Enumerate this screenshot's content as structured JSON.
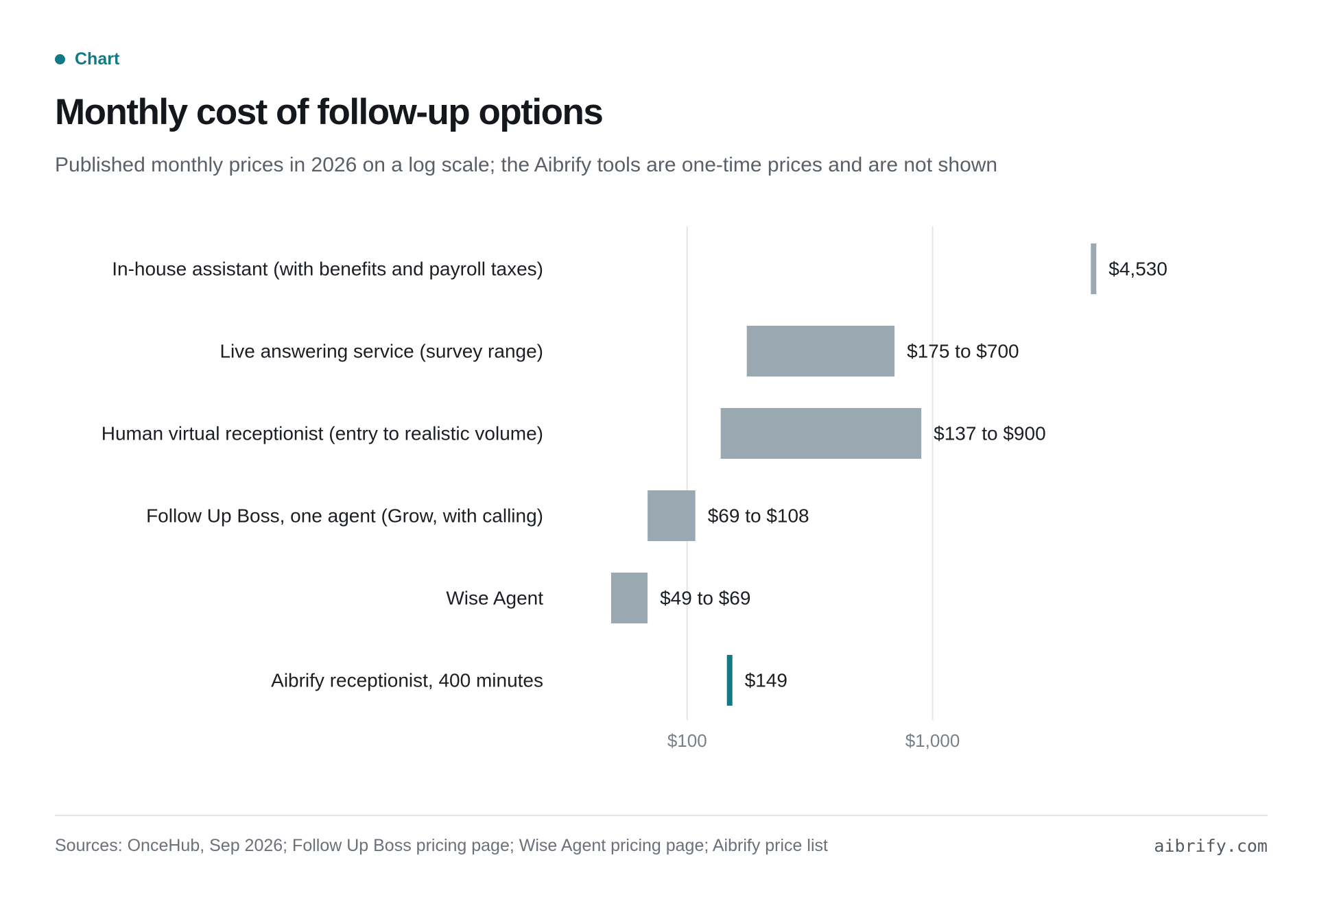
{
  "kicker": "Chart",
  "title": "Monthly cost of follow-up options",
  "subtitle": "Published monthly prices in 2026 on a log scale; the Aibrify tools are one-time prices and are not shown",
  "source": "Sources: OnceHub, Sep 2026; Follow Up Boss pricing page; Wise Agent pricing page; Aibrify price list",
  "brand": "aibrify.com",
  "colors": {
    "accent": "#127a85",
    "bar": "#9aa8b1",
    "grid": "#e3e5e7"
  },
  "chart_data": {
    "type": "bar",
    "orientation": "horizontal-range",
    "x_scale": "log",
    "xlim": [
      36,
      4700
    ],
    "xticks": [
      {
        "value": 100,
        "label": "$100"
      },
      {
        "value": 1000,
        "label": "$1,000"
      }
    ],
    "grid": true,
    "categories": [
      "In-house assistant (with benefits and payroll taxes)",
      "Live answering service (survey range)",
      "Human virtual receptionist (entry to realistic volume)",
      "Follow Up Boss, one agent (Grow, with calling)",
      "Wise Agent",
      "Aibrify receptionist, 400 minutes"
    ],
    "ranges": [
      {
        "low": 4530,
        "high": 4530,
        "label": "$4,530",
        "highlight": false
      },
      {
        "low": 175,
        "high": 700,
        "label": "$175 to $700",
        "highlight": false
      },
      {
        "low": 137,
        "high": 900,
        "label": "$137 to $900",
        "highlight": false
      },
      {
        "low": 69,
        "high": 108,
        "label": "$69 to $108",
        "highlight": false
      },
      {
        "low": 49,
        "high": 69,
        "label": "$49 to $69",
        "highlight": false
      },
      {
        "low": 149,
        "high": 149,
        "label": "$149",
        "highlight": true
      }
    ]
  }
}
